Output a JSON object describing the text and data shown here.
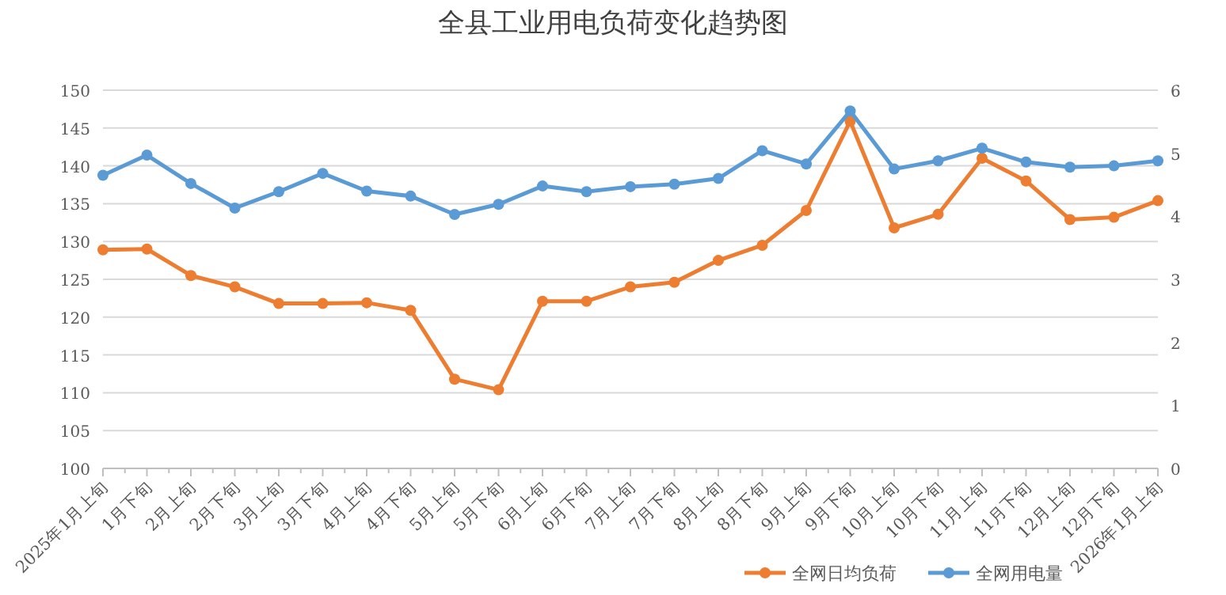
{
  "chart_data": {
    "type": "line",
    "title": "全县工业用电负荷变化趋势图",
    "categories": [
      "2025年1月上旬",
      "1月下旬",
      "2月上旬",
      "2月下旬",
      "3月上旬",
      "3月下旬",
      "4月上旬",
      "4月下旬",
      "5月上旬",
      "5月下旬",
      "6月上旬",
      "6月下旬",
      "7月上旬",
      "7月下旬",
      "8月上旬",
      "8月下旬",
      "9月上旬",
      "9月下旬",
      "10月上旬",
      "10月下旬",
      "11月上旬",
      "11月下旬",
      "12月上旬",
      "12月下旬",
      "2026年1月上旬"
    ],
    "series": [
      {
        "name": "全网日均负荷",
        "color": "#ed7d31",
        "values": [
          128.9,
          129.0,
          125.5,
          124.0,
          121.8,
          121.8,
          121.9,
          120.9,
          111.8,
          110.4,
          122.1,
          122.1,
          124.0,
          124.6,
          127.5,
          129.5,
          134.1,
          145.9,
          131.8,
          133.6,
          141.0,
          138.0,
          132.9,
          133.2,
          135.4
        ]
      },
      {
        "name": "全网用电量",
        "color": "#5b9bd5",
        "axis": "y2",
        "values": [
          4.65,
          4.97,
          4.52,
          4.13,
          4.39,
          4.68,
          4.4,
          4.32,
          4.03,
          4.19,
          4.48,
          4.39,
          4.47,
          4.51,
          4.6,
          5.04,
          4.83,
          5.67,
          4.75,
          4.88,
          5.08,
          4.86,
          4.78,
          4.8,
          4.88
        ]
      }
    ],
    "ylim": [
      100,
      150
    ],
    "yticks": [
      100,
      105,
      110,
      115,
      120,
      125,
      130,
      135,
      140,
      145,
      150
    ],
    "y2lim": [
      0,
      6
    ],
    "y2ticks": [
      0,
      1,
      2,
      3,
      4,
      5,
      6
    ],
    "grid": "y",
    "legend": "bottom right",
    "marker": "circle",
    "line_style": "solid"
  }
}
